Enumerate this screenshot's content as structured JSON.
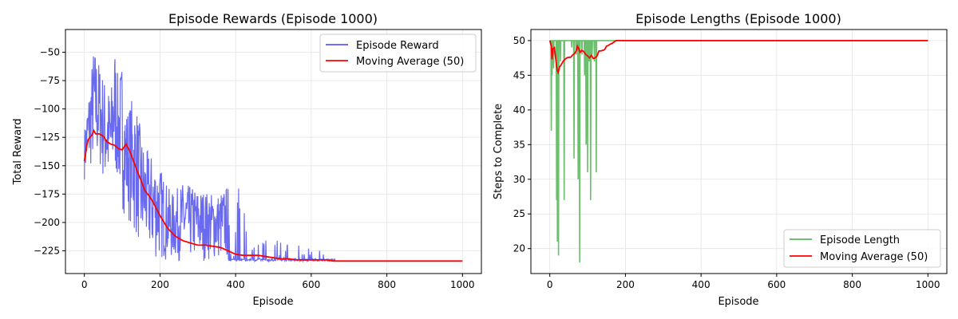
{
  "chart_data": [
    {
      "type": "line",
      "title": "Episode Rewards (Episode 1000)",
      "xlabel": "Episode",
      "ylabel": "Total Reward",
      "xlim": [
        -50,
        1050
      ],
      "ylim": [
        -245,
        -30
      ],
      "xticks": [
        0,
        200,
        400,
        600,
        800,
        1000
      ],
      "yticks": [
        -225,
        -200,
        -175,
        -150,
        -125,
        -100,
        -75,
        -50
      ],
      "grid": true,
      "legend_position": "upper-right",
      "series": [
        {
          "name": "Episode Reward",
          "color": "#5a5af0",
          "style": "noisy",
          "envelope": {
            "x": [
              0,
              10,
              25,
              40,
              55,
              70,
              80,
              90,
              100,
              110,
              120,
              130,
              140,
              150,
              160,
              180,
              200,
              230,
              260,
              300,
              350,
              400,
              450,
              500,
              560,
              610,
              650,
              700,
              1000
            ],
            "high": [
              -118,
              -88,
              -44,
              -58,
              -75,
              -85,
              -40,
              -75,
              -55,
              -100,
              -95,
              -85,
              -100,
              -120,
              -135,
              -140,
              -150,
              -175,
              -165,
              -170,
              -175,
              -162,
              -210,
              -215,
              -220,
              -218,
              -232,
              -234,
              -234
            ],
            "low": [
              -162,
              -160,
              -150,
              -155,
              -172,
              -175,
              -162,
              -170,
              -190,
              -195,
              -200,
              -215,
              -215,
              -230,
              -225,
              -234,
              -234,
              -234,
              -234,
              -234,
              -234,
              -234,
              -234,
              -234,
              -234,
              -234,
              -234,
              -234,
              -234
            ]
          }
        },
        {
          "name": "Moving Average (50)",
          "color": "#ff0000",
          "x": [
            0,
            3,
            6,
            10,
            15,
            20,
            25,
            30,
            40,
            50,
            60,
            70,
            80,
            90,
            100,
            110,
            120,
            130,
            140,
            150,
            160,
            170,
            180,
            200,
            220,
            240,
            260,
            280,
            300,
            320,
            340,
            360,
            380,
            400,
            420,
            440,
            460,
            480,
            500,
            520,
            540,
            560,
            580,
            600,
            620,
            640,
            660,
            680,
            1000
          ],
          "y": [
            -146,
            -140,
            -133,
            -127,
            -125,
            -123,
            -119,
            -122,
            -122,
            -124,
            -129,
            -131,
            -132,
            -135,
            -136,
            -131,
            -137,
            -146,
            -155,
            -163,
            -172,
            -176,
            -181,
            -194,
            -205,
            -212,
            -216,
            -218,
            -220,
            -220,
            -221,
            -222,
            -225,
            -228,
            -229,
            -229,
            -229,
            -230,
            -231,
            -232,
            -232,
            -233,
            -233,
            -233,
            -233,
            -233,
            -234,
            -234,
            -234
          ]
        }
      ]
    },
    {
      "type": "line",
      "title": "Episode Lengths (Episode 1000)",
      "xlabel": "Episode",
      "ylabel": "Steps to Complete",
      "xlim": [
        -50,
        1050
      ],
      "ylim": [
        16.4,
        51.6
      ],
      "xticks": [
        0,
        200,
        400,
        600,
        800,
        1000
      ],
      "yticks": [
        20,
        25,
        30,
        35,
        40,
        45,
        50
      ],
      "grid": true,
      "legend_position": "lower-right",
      "series": [
        {
          "name": "Episode Length",
          "color": "#5cb85c",
          "baseline": 50,
          "dips": [
            [
              4,
              37
            ],
            [
              6,
              45
            ],
            [
              10,
              46
            ],
            [
              18,
              27
            ],
            [
              20,
              21
            ],
            [
              23,
              19
            ],
            [
              28,
              47
            ],
            [
              38,
              27
            ],
            [
              58,
              49
            ],
            [
              64,
              33
            ],
            [
              70,
              48
            ],
            [
              75,
              30
            ],
            [
              79,
              18
            ],
            [
              85,
              48
            ],
            [
              92,
              45
            ],
            [
              96,
              35
            ],
            [
              100,
              31
            ],
            [
              104,
              47
            ],
            [
              108,
              27
            ],
            [
              112,
              48
            ],
            [
              118,
              47
            ],
            [
              123,
              31
            ]
          ]
        },
        {
          "name": "Moving Average (50)",
          "color": "#ff0000",
          "x": [
            0,
            4,
            6,
            8,
            12,
            16,
            19,
            22,
            26,
            30,
            35,
            40,
            45,
            50,
            55,
            60,
            65,
            70,
            73,
            76,
            80,
            85,
            90,
            95,
            100,
            105,
            110,
            115,
            120,
            125,
            130,
            135,
            140,
            145,
            150,
            155,
            160,
            165,
            170,
            175,
            1000
          ],
          "y": [
            50,
            49.2,
            47.3,
            48.8,
            49.0,
            47.2,
            45.8,
            45.4,
            46.2,
            46.5,
            47.0,
            47.3,
            47.5,
            47.6,
            47.6,
            47.9,
            48.1,
            48.5,
            49.2,
            48.9,
            48.3,
            48.6,
            48.4,
            48.0,
            47.8,
            47.5,
            47.9,
            47.4,
            47.5,
            47.8,
            48.5,
            48.5,
            48.6,
            48.7,
            49.2,
            49.3,
            49.5,
            49.6,
            49.8,
            50.0,
            50.0
          ]
        }
      ]
    }
  ]
}
